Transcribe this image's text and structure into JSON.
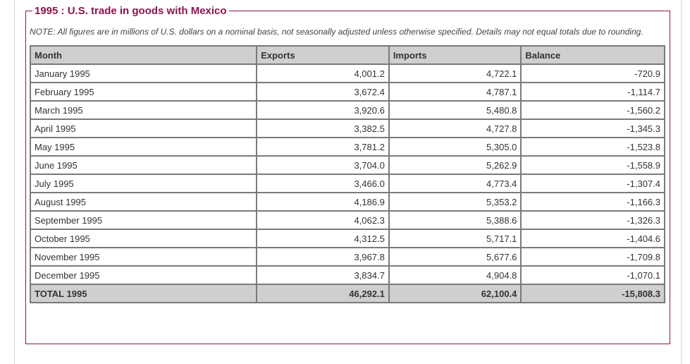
{
  "panel": {
    "title": "1995 : U.S. trade in goods with Mexico",
    "note": "NOTE: All figures are in millions of U.S. dollars on a nominal basis, not seasonally adjusted unless otherwise specified. Details may not equal totals due to rounding."
  },
  "table": {
    "headers": [
      "Month",
      "Exports",
      "Imports",
      "Balance"
    ],
    "rows": [
      [
        "January 1995",
        "4,001.2",
        "4,722.1",
        "-720.9"
      ],
      [
        "February 1995",
        "3,672.4",
        "4,787.1",
        "-1,114.7"
      ],
      [
        "March 1995",
        "3,920.6",
        "5,480.8",
        "-1,560.2"
      ],
      [
        "April 1995",
        "3,382.5",
        "4,727.8",
        "-1,345.3"
      ],
      [
        "May 1995",
        "3,781.2",
        "5,305.0",
        "-1,523.8"
      ],
      [
        "June 1995",
        "3,704.0",
        "5,262.9",
        "-1,558.9"
      ],
      [
        "July 1995",
        "3,466.0",
        "4,773.4",
        "-1,307.4"
      ],
      [
        "August 1995",
        "4,186.9",
        "5,353.2",
        "-1,166.3"
      ],
      [
        "September 1995",
        "4,062.3",
        "5,388.6",
        "-1,326.3"
      ],
      [
        "October 1995",
        "4,312.5",
        "5,717.1",
        "-1,404.6"
      ],
      [
        "November 1995",
        "3,967.8",
        "5,677.6",
        "-1,709.8"
      ],
      [
        "December 1995",
        "3,834.7",
        "4,904.8",
        "-1,070.1"
      ]
    ],
    "total": [
      "TOTAL 1995",
      "46,292.1",
      "62,100.4",
      "-15,808.3"
    ]
  },
  "colors": {
    "accent": "#8a1550",
    "header_bg": "#cfcfcf",
    "cell_border": "#7a7a7a"
  }
}
